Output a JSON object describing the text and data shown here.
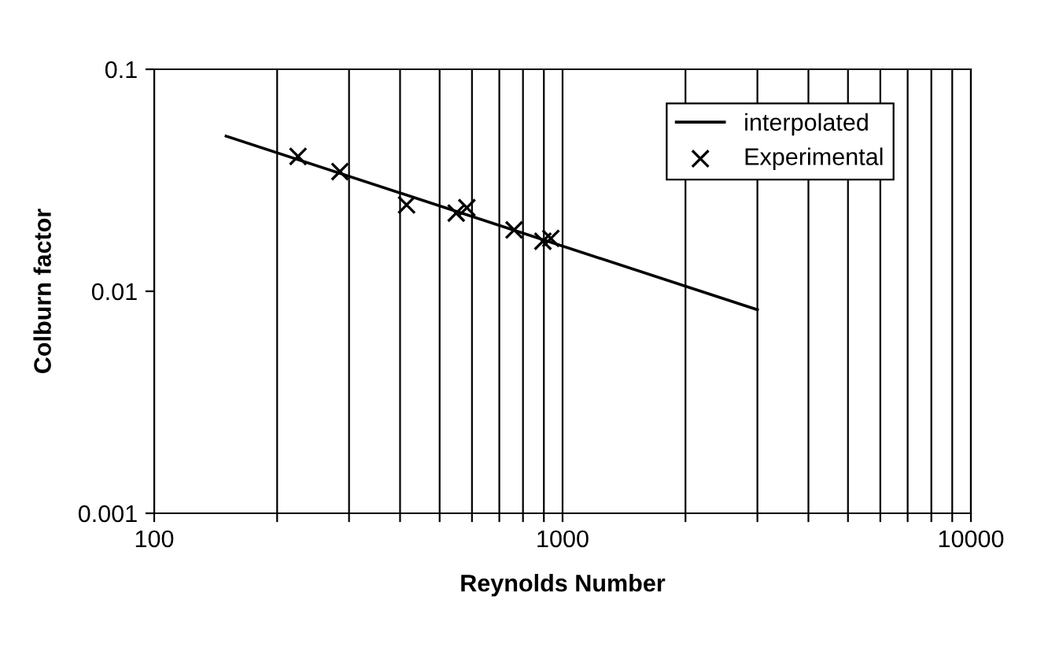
{
  "chart_data": {
    "type": "scatter",
    "xlabel": "Reynolds Number",
    "ylabel": "Colburn factor",
    "log": "xy",
    "series": [
      {
        "name": "interpolated",
        "type": "line",
        "color": "#000000",
        "marker": "none",
        "line_style": "solid",
        "x": [
          150,
          3000
        ],
        "values": [
          0.05,
          0.00826
        ]
      },
      {
        "name": "Experimental",
        "color": "#000000",
        "marker": "cross",
        "x": [
          225,
          285,
          415,
          549,
          583,
          761,
          895,
          936
        ],
        "values": [
          0.0405,
          0.0346,
          0.0245,
          0.0225,
          0.0238,
          0.0189,
          0.0168,
          0.0173
        ]
      }
    ],
    "xlim": [
      100,
      10000
    ],
    "ylim": [
      0.001,
      0.1
    ],
    "xticks": [
      100,
      {
        "value": 200,
        "label": null
      },
      {
        "value": 300,
        "label": null
      },
      {
        "value": 400,
        "label": null
      },
      {
        "value": 500,
        "label": null
      },
      {
        "value": 600,
        "label": null
      },
      {
        "value": 700,
        "label": null
      },
      {
        "value": 800,
        "label": null
      },
      {
        "value": 900,
        "label": null
      },
      1000,
      {
        "value": 2000,
        "label": null
      },
      {
        "value": 3000,
        "label": null
      },
      {
        "value": 4000,
        "label": null
      },
      {
        "value": 5000,
        "label": null
      },
      {
        "value": 6000,
        "label": null
      },
      {
        "value": 7000,
        "label": null
      },
      {
        "value": 8000,
        "label": null
      },
      {
        "value": 9000,
        "label": null
      },
      10000
    ],
    "yticks": [
      0.001,
      0.01,
      0.1
    ],
    "grid": "x",
    "legend": "top right"
  }
}
